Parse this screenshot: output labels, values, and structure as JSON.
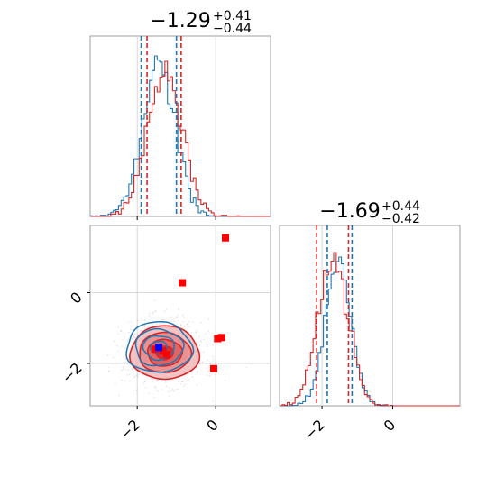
{
  "chart_data": {
    "type": "corner",
    "x_range": [
      -3.2,
      1.4
    ],
    "y_range": [
      -3.2,
      1.9
    ],
    "ticks": [
      -2,
      0
    ],
    "tick_labels": [
      "−2",
      "0"
    ],
    "grid": true,
    "panels": {
      "hist_x": {
        "title": {
          "median": "−1.29",
          "plus": "+0.41",
          "minus": "−0.44"
        },
        "quantile_lines": {
          "blue": [
            -1.9,
            -1.0
          ],
          "red": [
            -1.75,
            -0.88
          ]
        }
      },
      "hist_y": {
        "title": {
          "median": "−1.69",
          "plus": "+0.44",
          "minus": "−0.42"
        },
        "quantile_lines": {
          "blue": [
            -1.85,
            -1.15
          ],
          "red": [
            -2.15,
            -1.25
          ]
        }
      },
      "scatter": {
        "blue_center": [
          -1.45,
          -1.55
        ],
        "red_points": [
          [
            0.25,
            1.55
          ],
          [
            -0.85,
            0.28
          ],
          [
            0.05,
            -1.3
          ],
          [
            0.15,
            -1.27
          ],
          [
            -0.05,
            -2.15
          ],
          [
            -1.25,
            -1.75
          ],
          [
            -1.55,
            -1.6
          ],
          [
            -1.35,
            -1.65
          ]
        ],
        "red_contour_sigmas": [
          0.6,
          0.45,
          0.28,
          0.14
        ],
        "blue_contour_sigmas": [
          0.55,
          0.4,
          0.25
        ]
      }
    },
    "series": [
      {
        "color": "#1f77b4"
      },
      {
        "color": "#d62728"
      }
    ]
  }
}
